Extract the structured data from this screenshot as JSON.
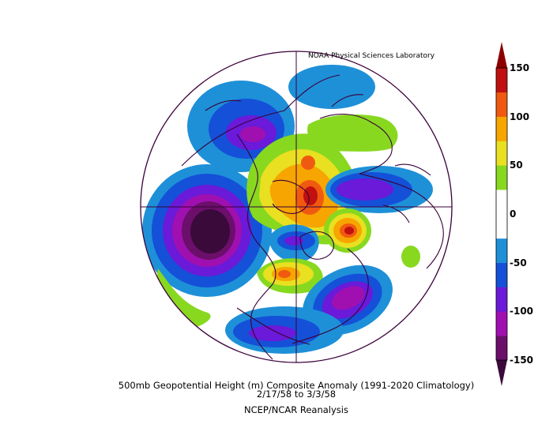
{
  "map": {
    "credit": "NOAA Physical Sciences Laboratory",
    "title": "500mb Geopotential Height (m) Composite Anomaly (1991-2020 Climatology)",
    "date_range": "2/17/58   to 3/3/58",
    "source": "NCEP/NCAR Reanalysis"
  },
  "colorbar": {
    "ticks": [
      "150",
      "100",
      "50",
      "0",
      "-50",
      "-100",
      "-150"
    ],
    "tick_values": [
      150,
      100,
      50,
      0,
      -50,
      -100,
      -150
    ],
    "colors": [
      "#6b0f6b",
      "#a010b0",
      "#6a1ad8",
      "#1550d8",
      "#1e90d8",
      "#ffffff",
      "#ffffff",
      "#88d820",
      "#e8e020",
      "#f7a500",
      "#f05a10",
      "#c01010"
    ],
    "min_color": "#3a0a3a",
    "max_color": "#8c0000"
  }
}
